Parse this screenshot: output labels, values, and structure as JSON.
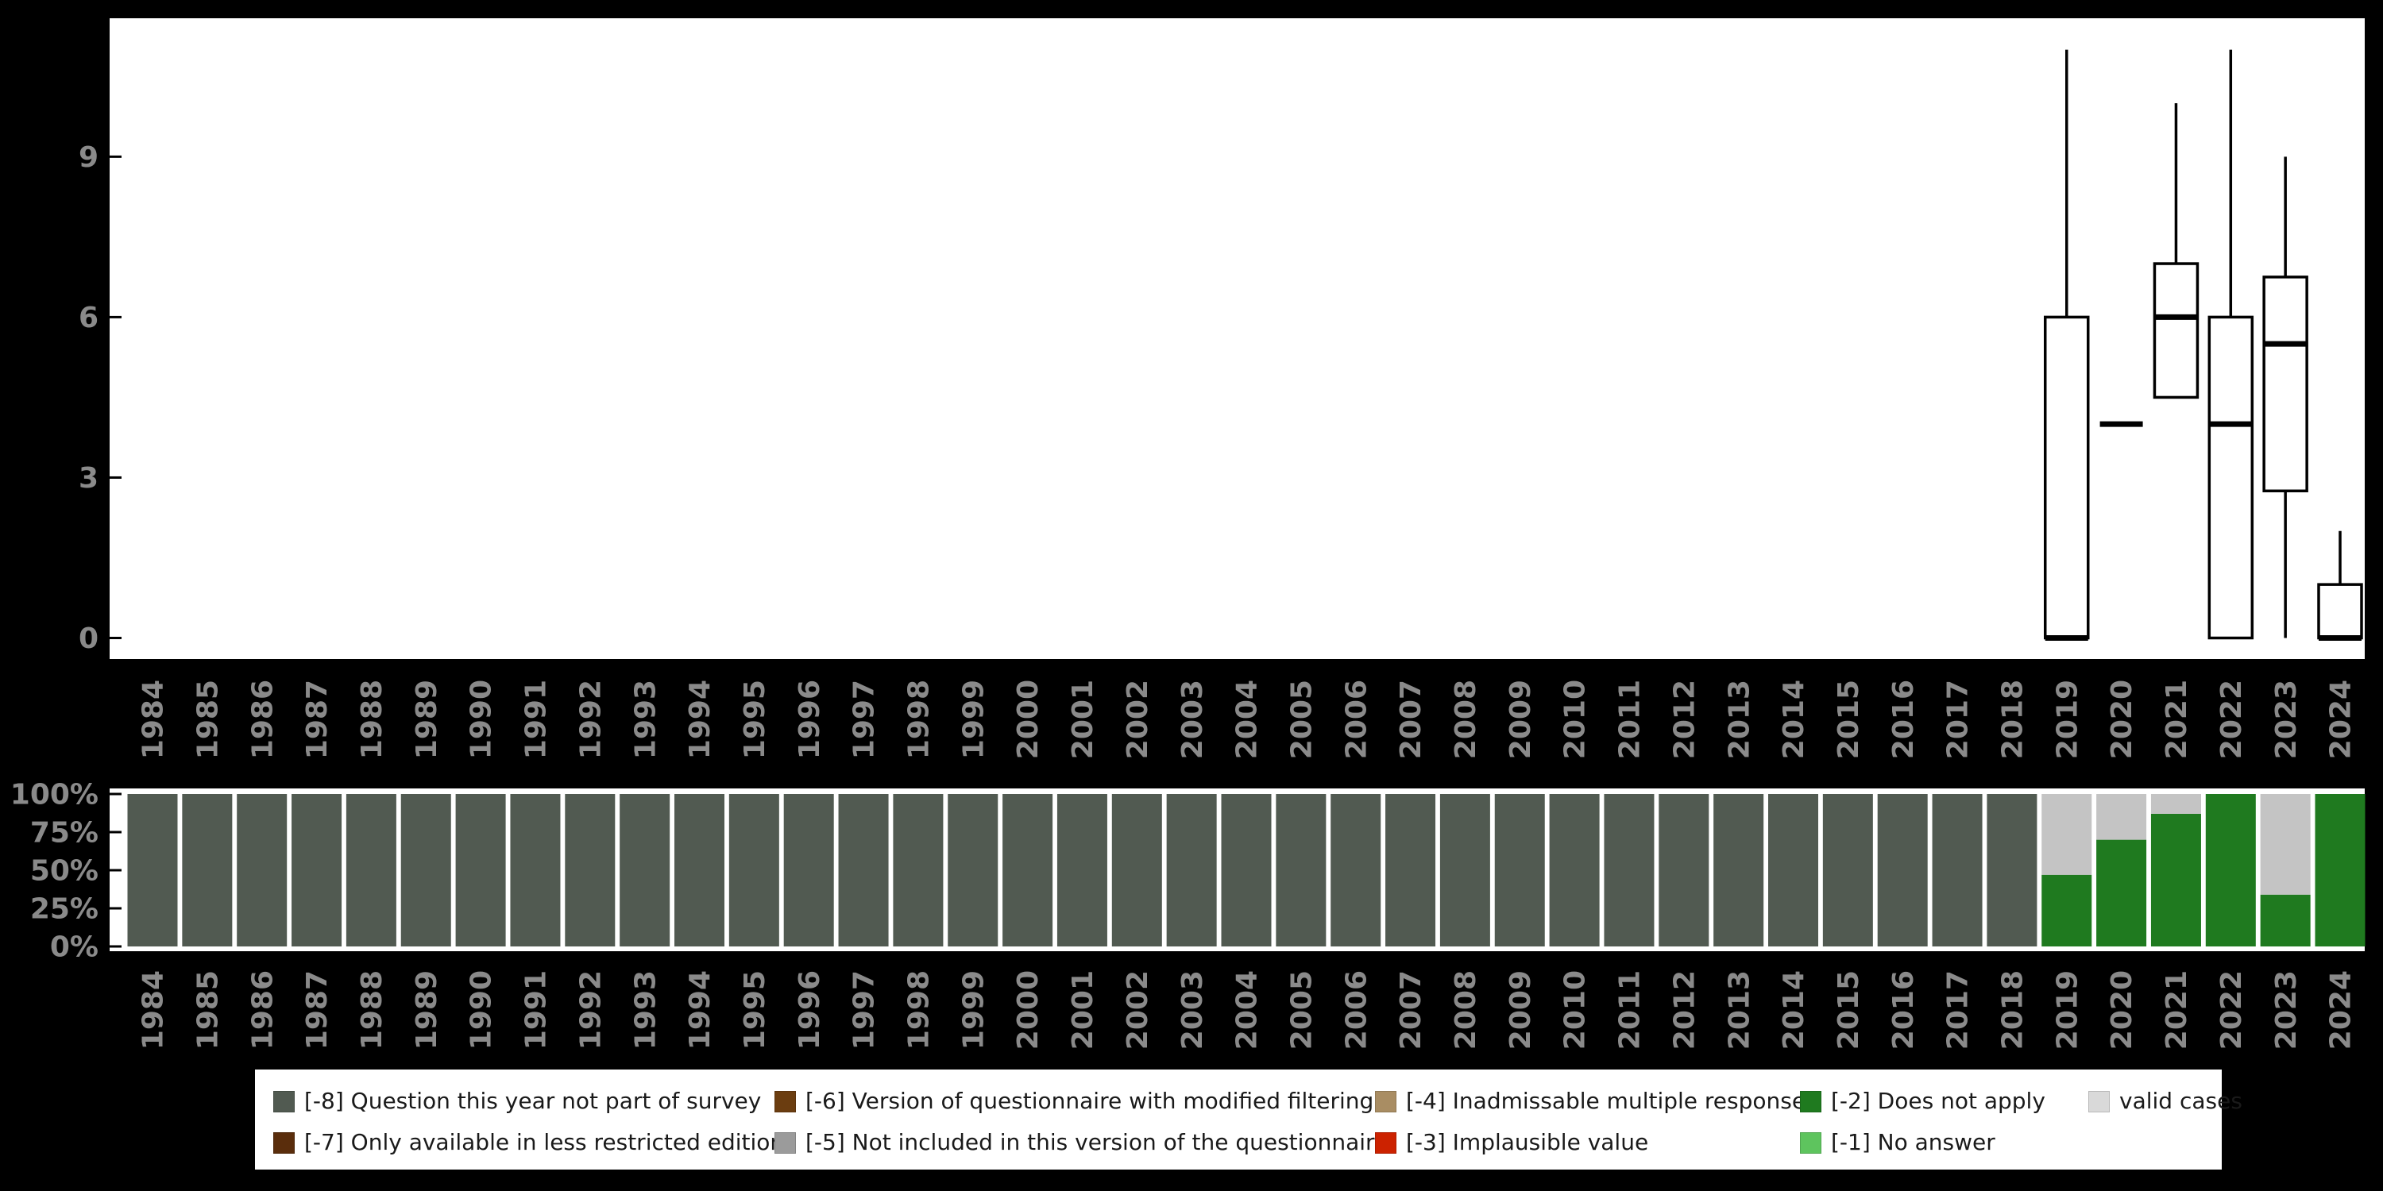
{
  "colors": {
    "background": "#000000",
    "panel": "#ffffff",
    "axis_text": "#8a8a8a",
    "box_stroke": "#000000",
    "legend_text": "#1a1a1a"
  },
  "chart_data": [
    {
      "type": "boxplot",
      "title": "",
      "xlabel": "",
      "ylabel": "",
      "x": [
        1984,
        1985,
        1986,
        1987,
        1988,
        1989,
        1990,
        1991,
        1992,
        1993,
        1994,
        1995,
        1996,
        1997,
        1998,
        1999,
        2000,
        2001,
        2002,
        2003,
        2004,
        2005,
        2006,
        2007,
        2008,
        2009,
        2010,
        2011,
        2012,
        2013,
        2014,
        2015,
        2016,
        2017,
        2018,
        2019,
        2020,
        2021,
        2022,
        2023,
        2024
      ],
      "ylim": [
        0,
        11.6
      ],
      "yticks": [
        0,
        3,
        6,
        9
      ],
      "grid": false,
      "boxes": [
        {
          "year": 2019,
          "low": 0,
          "q1": 0,
          "median": 0,
          "q3": 6,
          "high": 11
        },
        {
          "year": 2020,
          "low": 4,
          "q1": 4,
          "median": 4,
          "q3": 4,
          "high": 4
        },
        {
          "year": 2021,
          "low": 4.5,
          "q1": 4.5,
          "median": 6,
          "q3": 7,
          "high": 10
        },
        {
          "year": 2022,
          "low": 0,
          "q1": 0,
          "median": 4,
          "q3": 6,
          "high": 11
        },
        {
          "year": 2023,
          "low": 0,
          "q1": 2.75,
          "median": 5.5,
          "q3": 6.75,
          "high": 9
        },
        {
          "year": 2024,
          "low": 0,
          "q1": 0,
          "median": 0,
          "q3": 1,
          "high": 2
        }
      ]
    },
    {
      "type": "bar",
      "stacked": true,
      "title": "",
      "xlabel": "",
      "ylabel": "",
      "categories": [
        1984,
        1985,
        1986,
        1987,
        1988,
        1989,
        1990,
        1991,
        1992,
        1993,
        1994,
        1995,
        1996,
        1997,
        1998,
        1999,
        2000,
        2001,
        2002,
        2003,
        2004,
        2005,
        2006,
        2007,
        2008,
        2009,
        2010,
        2011,
        2012,
        2013,
        2014,
        2015,
        2016,
        2017,
        2018,
        2019,
        2020,
        2021,
        2022,
        2023,
        2024
      ],
      "ylim": [
        0,
        100
      ],
      "yticks": [
        0,
        25,
        50,
        75,
        100
      ],
      "yticklabels": [
        "0%",
        "25%",
        "50%",
        "75%",
        "100%"
      ],
      "legend_position": "bottom",
      "series": [
        {
          "name": "[-8] Question this year not part of survey",
          "color": "#515a51",
          "values": [
            100,
            100,
            100,
            100,
            100,
            100,
            100,
            100,
            100,
            100,
            100,
            100,
            100,
            100,
            100,
            100,
            100,
            100,
            100,
            100,
            100,
            100,
            100,
            100,
            100,
            100,
            100,
            100,
            100,
            100,
            100,
            100,
            100,
            100,
            100,
            0,
            0,
            0,
            0,
            0,
            0
          ]
        },
        {
          "name": "[-2] Does not apply",
          "color": "#1f7a1f",
          "values": [
            0,
            0,
            0,
            0,
            0,
            0,
            0,
            0,
            0,
            0,
            0,
            0,
            0,
            0,
            0,
            0,
            0,
            0,
            0,
            0,
            0,
            0,
            0,
            0,
            0,
            0,
            0,
            0,
            0,
            0,
            0,
            0,
            0,
            0,
            0,
            47,
            70,
            87,
            100,
            34,
            100
          ]
        },
        {
          "name": "valid cases",
          "color": "#c4c4c4",
          "values": [
            0,
            0,
            0,
            0,
            0,
            0,
            0,
            0,
            0,
            0,
            0,
            0,
            0,
            0,
            0,
            0,
            0,
            0,
            0,
            0,
            0,
            0,
            0,
            0,
            0,
            0,
            0,
            0,
            0,
            0,
            0,
            0,
            0,
            0,
            0,
            53,
            30,
            13,
            0,
            66,
            0
          ]
        }
      ]
    }
  ],
  "legend": {
    "rows": [
      [
        {
          "label": "[-8] Question this year not part of survey",
          "color": "#515a51"
        },
        {
          "label": "[-6] Version of questionnaire with modified filtering",
          "color": "#6b3d10"
        },
        {
          "label": "[-4] Inadmissable multiple response",
          "color": "#a98d63"
        },
        {
          "label": "[-2] Does not apply",
          "color": "#1f7a1f"
        },
        {
          "label": "valid cases",
          "color": "#d9d9d9"
        }
      ],
      [
        {
          "label": "[-7] Only available in less restricted edition",
          "color": "#5a2d0c"
        },
        {
          "label": "[-5] Not included in this version of the questionnaire",
          "color": "#9b9b9b"
        },
        {
          "label": "[-3] Implausible value",
          "color": "#cc2200"
        },
        {
          "label": "[-1] No answer",
          "color": "#5ec45e"
        }
      ]
    ]
  }
}
